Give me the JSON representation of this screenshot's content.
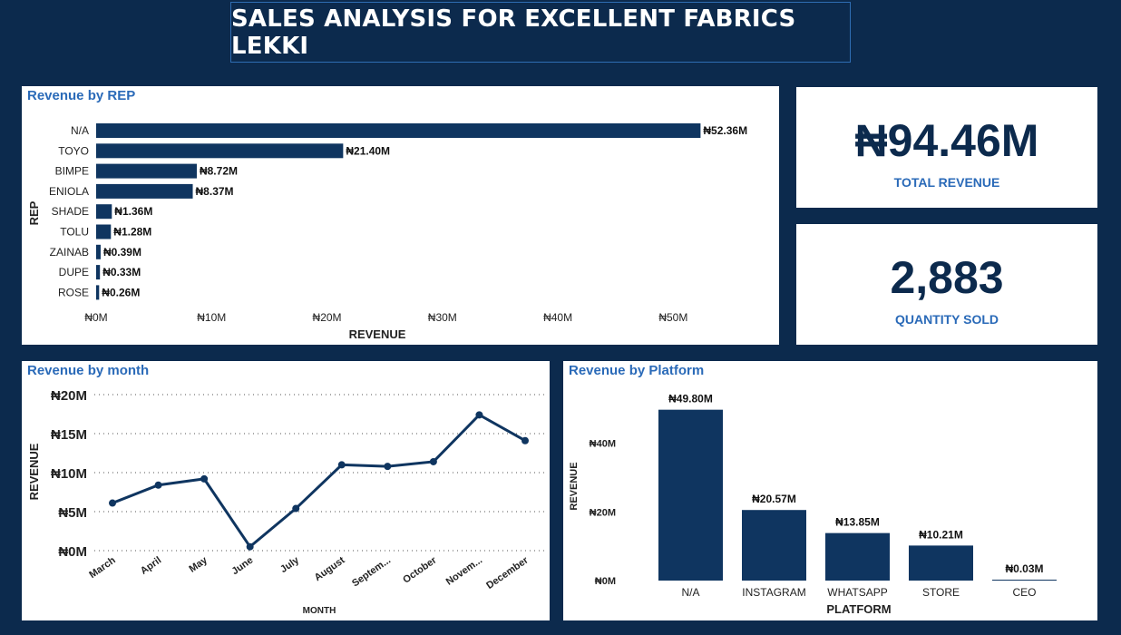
{
  "header": {
    "title": "SALES ANALYSIS FOR EXCELLENT FABRICS LEKKI"
  },
  "kpis": {
    "total_revenue": {
      "value": "₦94.46M",
      "label": "TOTAL REVENUE"
    },
    "quantity_sold": {
      "value": "2,883",
      "label": "QUANTITY SOLD"
    }
  },
  "colors": {
    "background": "#0c2a4d",
    "bar": "#0f3560",
    "title_accent": "#2a6ab8",
    "panel": "#ffffff"
  },
  "chart_data": [
    {
      "id": "rep",
      "type": "bar",
      "orientation": "horizontal",
      "title": "Revenue by REP",
      "xlabel": "REVENUE",
      "ylabel": "REP",
      "categories": [
        "N/A",
        "TOYO",
        "BIMPE",
        "ENIOLA",
        "SHADE",
        "TOLU",
        "ZAINAB",
        "DUPE",
        "ROSE"
      ],
      "values": [
        52.36,
        21.4,
        8.72,
        8.37,
        1.36,
        1.28,
        0.39,
        0.33,
        0.26
      ],
      "data_labels": [
        "₦52.36M",
        "₦21.40M",
        "₦8.72M",
        "₦8.37M",
        "₦1.36M",
        "₦1.28M",
        "₦0.39M",
        "₦0.33M",
        "₦0.26M"
      ],
      "xticks": [
        0,
        10,
        20,
        30,
        40,
        50
      ],
      "xtick_labels": [
        "₦0M",
        "₦10M",
        "₦20M",
        "₦30M",
        "₦40M",
        "₦50M"
      ],
      "xlim": [
        0,
        55
      ],
      "units": "millions ₦"
    },
    {
      "id": "month",
      "type": "line",
      "title": "Revenue by month",
      "xlabel": "MONTH",
      "ylabel": "REVENUE",
      "categories": [
        "March",
        "April",
        "May",
        "June",
        "July",
        "August",
        "Septem...",
        "October",
        "Novem...",
        "December"
      ],
      "values": [
        6.1,
        8.4,
        9.2,
        0.5,
        5.4,
        11.0,
        10.8,
        11.4,
        17.4,
        14.1
      ],
      "yticks": [
        0,
        5,
        10,
        15,
        20
      ],
      "ytick_labels": [
        "₦0M",
        "₦5M",
        "₦10M",
        "₦15M",
        "₦20M"
      ],
      "ylim": [
        0,
        20
      ],
      "grid": true,
      "units": "millions ₦"
    },
    {
      "id": "platform",
      "type": "bar",
      "orientation": "vertical",
      "title": "Revenue by Platform",
      "xlabel": "PLATFORM",
      "ylabel": "REVENUE",
      "categories": [
        "N/A",
        "INSTAGRAM",
        "WHATSAPP",
        "STORE",
        "CEO"
      ],
      "values": [
        49.8,
        20.57,
        13.85,
        10.21,
        0.03
      ],
      "data_labels": [
        "₦49.80M",
        "₦20.57M",
        "₦13.85M",
        "₦10.21M",
        "₦0.03M"
      ],
      "yticks": [
        0,
        20,
        40
      ],
      "ytick_labels": [
        "₦0M",
        "₦20M",
        "₦40M"
      ],
      "ylim": [
        0,
        55
      ],
      "units": "millions ₦"
    }
  ]
}
